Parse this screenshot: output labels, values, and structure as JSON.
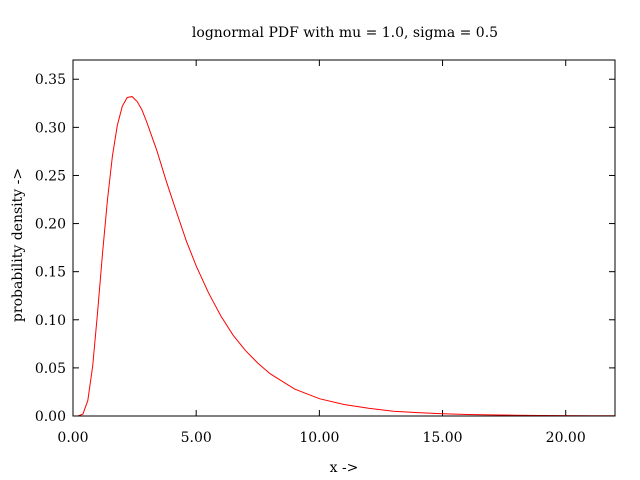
{
  "chart_data": {
    "type": "line",
    "title": "lognormal PDF with mu = 1.0, sigma = 0.5",
    "xlabel": "x ->",
    "ylabel": "probability density ->",
    "xlim": [
      0,
      22
    ],
    "ylim": [
      0,
      0.37
    ],
    "xticks": [
      0,
      5,
      10,
      15,
      20
    ],
    "xtick_labels": [
      "0.00",
      "5.00",
      "10.00",
      "15.00",
      "20.00"
    ],
    "yticks": [
      0,
      0.05,
      0.1,
      0.15,
      0.2,
      0.25,
      0.3,
      0.35
    ],
    "ytick_labels": [
      "0.00",
      "0.05",
      "0.10",
      "0.15",
      "0.20",
      "0.25",
      "0.30",
      "0.35"
    ],
    "grid": false,
    "series": [
      {
        "color": "#ff0000",
        "x": [
          0.0,
          0.2,
          0.4,
          0.6,
          0.8,
          1.0,
          1.2,
          1.4,
          1.6,
          1.8,
          2.0,
          2.2,
          2.4,
          2.6,
          2.8,
          3.0,
          3.4,
          3.8,
          4.2,
          4.6,
          5.0,
          5.5,
          6.0,
          6.5,
          7.0,
          7.5,
          8.0,
          9.0,
          10.0,
          11.0,
          12.0,
          13.0,
          14.0,
          15.0,
          16.0,
          17.0,
          18.0,
          19.0,
          20.0,
          21.0,
          22.0
        ],
        "values": [
          0.0,
          0.0,
          0.002,
          0.016,
          0.052,
          0.108,
          0.17,
          0.225,
          0.27,
          0.302,
          0.322,
          0.331,
          0.332,
          0.327,
          0.318,
          0.305,
          0.276,
          0.243,
          0.212,
          0.182,
          0.156,
          0.128,
          0.104,
          0.084,
          0.068,
          0.055,
          0.044,
          0.028,
          0.018,
          0.012,
          0.008,
          0.005,
          0.0035,
          0.0024,
          0.0016,
          0.0011,
          0.0008,
          0.0005,
          0.0004,
          0.0003,
          0.0002
        ]
      }
    ]
  }
}
